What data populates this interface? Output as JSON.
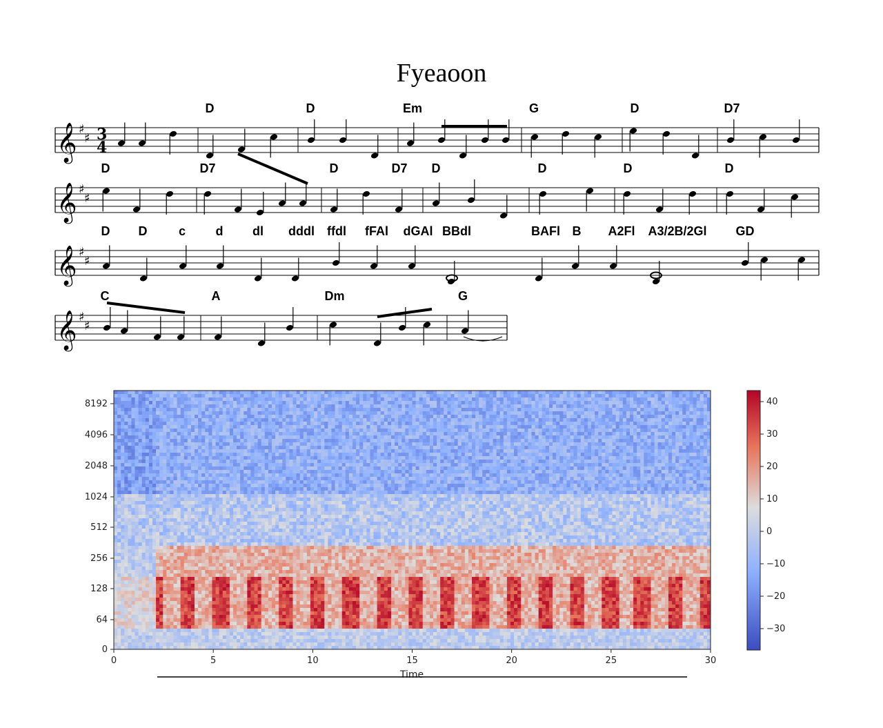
{
  "score": {
    "title": "Fyeaoon",
    "time_signature": {
      "top": "3",
      "bottom": "4"
    },
    "key": "D major (2 sharps)",
    "systems": [
      {
        "chords": [
          "D",
          "D",
          "Em",
          "G",
          "D",
          "D7"
        ],
        "measures": 7
      },
      {
        "chords": [
          "D",
          "D7",
          "D",
          "D7",
          "D",
          "D",
          "D",
          "D"
        ],
        "measures": 8
      },
      {
        "chords": [
          "D",
          "D",
          "c",
          "d",
          "dl",
          "dddl",
          "ffdl",
          "fFAl",
          "dGAl",
          "BBdl",
          "BAFl",
          "B",
          "A2Fl",
          "A3/2B/2Gl",
          "GD"
        ],
        "measures": 1
      },
      {
        "chords": [
          "C",
          "A",
          "Dm",
          "G"
        ],
        "measures": 4
      }
    ]
  },
  "spectrogram": {
    "xlabel": "Time",
    "x_ticks": [
      "0",
      "5",
      "10",
      "15",
      "20",
      "25",
      "30"
    ],
    "y_ticks": [
      "0",
      "64",
      "128",
      "256",
      "512",
      "1024",
      "2048",
      "4096",
      "8192"
    ],
    "y_scale": "log",
    "colorbar_ticks": [
      "40",
      "30",
      "20",
      "10",
      "0",
      "−10",
      "−20",
      "−30"
    ],
    "colormap": "coolwarm",
    "colors": {
      "low": "#3b4cc0",
      "mid": "#dddddd",
      "high": "#b40426"
    }
  }
}
